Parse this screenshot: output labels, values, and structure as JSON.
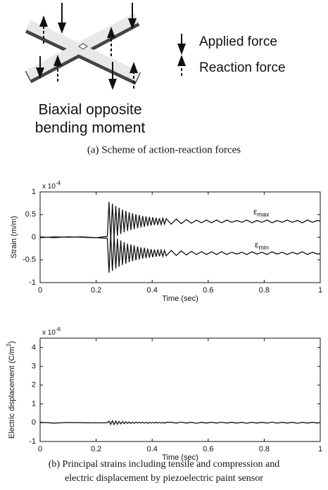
{
  "figure_a": {
    "legend": {
      "applied": "Applied force",
      "reaction": "Reaction force"
    },
    "moment_label": [
      "Biaxial opposite",
      "bending moment"
    ],
    "caption": "(a) Scheme of action-reaction forces"
  },
  "chart_data": [
    {
      "type": "line",
      "xlabel": "Time (sec)",
      "ylabel": "Strain (m/m)",
      "y_exponent": {
        "base": "x 10",
        "power": "-4"
      },
      "annotations": [
        {
          "symbol": "ε",
          "subscript": "max"
        },
        {
          "symbol": "ε",
          "subscript": "min"
        }
      ],
      "xlim": [
        0,
        1
      ],
      "xticks": [
        0,
        0.2,
        0.4,
        0.6,
        0.8,
        1
      ],
      "ylim": [
        -1,
        1
      ],
      "yticks": [
        -1,
        -0.5,
        0,
        0.5,
        1
      ],
      "x": [
        0,
        0.05,
        0.1,
        0.15,
        0.2,
        0.24,
        0.246,
        0.252,
        0.258,
        0.264,
        0.27,
        0.276,
        0.282,
        0.288,
        0.294,
        0.3,
        0.306,
        0.312,
        0.318,
        0.324,
        0.33,
        0.336,
        0.342,
        0.348,
        0.354,
        0.36,
        0.366,
        0.372,
        0.378,
        0.384,
        0.39,
        0.396,
        0.402,
        0.408,
        0.414,
        0.42,
        0.426,
        0.432,
        0.438,
        0.444,
        0.45,
        0.468,
        0.486,
        0.504,
        0.522,
        0.54,
        0.558,
        0.576,
        0.594,
        0.612,
        0.63,
        0.648,
        0.666,
        0.684,
        0.702,
        0.72,
        0.738,
        0.756,
        0.774,
        0.792,
        0.81,
        0.828,
        0.846,
        0.864,
        0.882,
        0.9,
        0.918,
        0.936,
        0.954,
        0.972,
        0.99,
        1
      ],
      "series": [
        {
          "color": "#111111",
          "values": [
            0.01,
            -0.01,
            0.01,
            0,
            -0.01,
            0.02,
            0.78,
            -0.07,
            0.74,
            -0.02,
            0.69,
            0.03,
            0.65,
            0.07,
            0.61,
            0.11,
            0.58,
            0.14,
            0.55,
            0.16,
            0.53,
            0.18,
            0.51,
            0.2,
            0.49,
            0.22,
            0.47,
            0.23,
            0.46,
            0.25,
            0.45,
            0.26,
            0.44,
            0.27,
            0.43,
            0.27,
            0.42,
            0.28,
            0.42,
            0.29,
            0.41,
            0.29,
            0.4,
            0.3,
            0.39,
            0.31,
            0.38,
            0.32,
            0.38,
            0.32,
            0.38,
            0.32,
            0.38,
            0.33,
            0.37,
            0.33,
            0.38,
            0.32,
            0.37,
            0.33,
            0.38,
            0.32,
            0.37,
            0.33,
            0.38,
            0.33,
            0.37,
            0.32,
            0.38,
            0.33,
            0.37,
            0.36
          ]
        },
        {
          "color": "#111111",
          "values": [
            -0.01,
            0.01,
            0,
            0.01,
            -0.01,
            -0.02,
            -0.78,
            0.07,
            -0.74,
            0.02,
            -0.69,
            -0.03,
            -0.65,
            -0.07,
            -0.61,
            -0.11,
            -0.58,
            -0.14,
            -0.55,
            -0.16,
            -0.53,
            -0.18,
            -0.51,
            -0.2,
            -0.49,
            -0.22,
            -0.47,
            -0.23,
            -0.46,
            -0.25,
            -0.45,
            -0.26,
            -0.44,
            -0.27,
            -0.43,
            -0.27,
            -0.42,
            -0.28,
            -0.42,
            -0.29,
            -0.41,
            -0.29,
            -0.4,
            -0.3,
            -0.39,
            -0.31,
            -0.38,
            -0.32,
            -0.38,
            -0.32,
            -0.38,
            -0.32,
            -0.38,
            -0.33,
            -0.37,
            -0.33,
            -0.38,
            -0.32,
            -0.37,
            -0.33,
            -0.38,
            -0.32,
            -0.37,
            -0.33,
            -0.38,
            -0.33,
            -0.37,
            -0.32,
            -0.38,
            -0.33,
            -0.37,
            -0.36
          ]
        }
      ]
    },
    {
      "type": "line",
      "xlabel": "Time (sec)",
      "ylabel": {
        "text": "Electric displacement (C/m",
        "power": "2",
        "close": ")"
      },
      "y_exponent": {
        "base": "x 10",
        "power": "-6"
      },
      "xlim": [
        0,
        1
      ],
      "xticks": [
        0,
        0.2,
        0.4,
        0.6,
        0.8,
        1
      ],
      "ylim": [
        -1,
        4.5
      ],
      "yticks": [
        -1,
        0,
        1,
        2,
        3,
        4
      ],
      "x": [
        0,
        0.05,
        0.1,
        0.15,
        0.2,
        0.24,
        0.246,
        0.252,
        0.258,
        0.264,
        0.27,
        0.276,
        0.282,
        0.288,
        0.294,
        0.3,
        0.306,
        0.312,
        0.318,
        0.324,
        0.33,
        0.336,
        0.342,
        0.348,
        0.354,
        0.36,
        0.366,
        0.372,
        0.378,
        0.384,
        0.39,
        0.396,
        0.402,
        0.408,
        0.414,
        0.42,
        0.426,
        0.432,
        0.438,
        0.444,
        0.45,
        0.468,
        0.486,
        0.504,
        0.522,
        0.54,
        0.558,
        0.576,
        0.594,
        0.612,
        0.63,
        0.648,
        0.666,
        0.684,
        0.702,
        0.72,
        0.738,
        0.756,
        0.774,
        0.792,
        0.81,
        0.828,
        0.846,
        0.864,
        0.882,
        0.9,
        0.918,
        0.936,
        0.954,
        0.972,
        0.99,
        1
      ],
      "series": [
        {
          "color": "#111111",
          "values": [
            0.02,
            -0.02,
            0.01,
            0,
            -0.01,
            0,
            0.08,
            -0.09,
            0.1,
            -0.1,
            0.09,
            -0.08,
            0.07,
            -0.06,
            0.06,
            -0.05,
            0.05,
            -0.04,
            0.04,
            -0.04,
            0.03,
            -0.03,
            0.03,
            -0.02,
            0.02,
            -0.02,
            0.03,
            -0.02,
            0.02,
            -0.03,
            0.02,
            -0.02,
            0.02,
            -0.02,
            0.03,
            -0.02,
            0.02,
            -0.02,
            0.02,
            -0.03,
            0.02,
            0.02,
            -0.02,
            0.03,
            -0.02,
            0.02,
            -0.03,
            0.02,
            -0.02,
            0.02,
            -0.02,
            0.03,
            -0.02,
            0.02,
            -0.02,
            0.02,
            -0.03,
            0.02,
            -0.02,
            0.02,
            -0.02,
            0.03,
            -0.02,
            0.02,
            -0.02,
            0.02,
            -0.03,
            0.02,
            -0.02,
            0.02,
            -0.02,
            0.01
          ]
        }
      ]
    }
  ],
  "caption_b": [
    "(b) Principal strains including tensile and compression and",
    "electric displacement by piezoelectric paint sensor"
  ]
}
